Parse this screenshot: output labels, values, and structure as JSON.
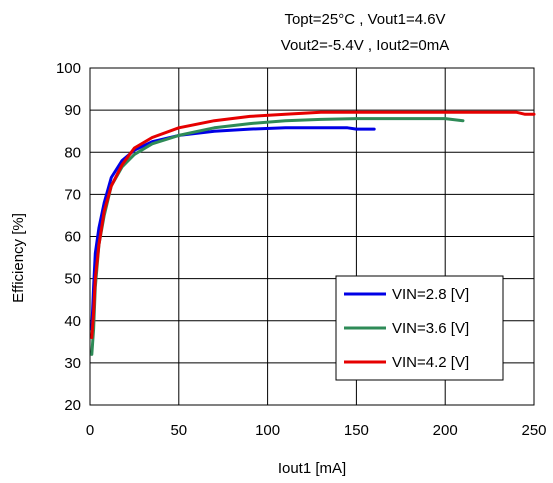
{
  "chart_data": {
    "type": "line",
    "conditions": {
      "line1": "Topt=25°C , Vout1=4.6V",
      "line2": "Vout2=-5.4V , Iout2=0mA"
    },
    "xlabel": "Iout1 [mA]",
    "ylabel": "Efficiency [%]",
    "xlim": [
      0,
      250
    ],
    "ylim": [
      20,
      100
    ],
    "xticks": [
      0,
      50,
      100,
      150,
      200,
      250
    ],
    "yticks": [
      20,
      30,
      40,
      50,
      60,
      70,
      80,
      90,
      100
    ],
    "grid": true,
    "legend_position": "bottom-right",
    "series": [
      {
        "name": "VIN=2.8 [V]",
        "color": "#0000e6",
        "x": [
          1,
          2,
          3,
          5,
          8,
          12,
          18,
          25,
          35,
          50,
          70,
          90,
          110,
          130,
          145,
          150,
          160
        ],
        "y": [
          38,
          48,
          56,
          62,
          68,
          74,
          78,
          80.5,
          82.5,
          84,
          85,
          85.5,
          85.8,
          85.8,
          85.8,
          85.5,
          85.5
        ]
      },
      {
        "name": "VIN=3.6 [V]",
        "color": "#2e8b57",
        "x": [
          1,
          2,
          3,
          5,
          8,
          12,
          18,
          25,
          35,
          50,
          70,
          90,
          110,
          130,
          150,
          170,
          200,
          210
        ],
        "y": [
          32,
          38,
          48,
          58,
          65,
          72,
          76.5,
          79.5,
          82,
          84,
          85.8,
          86.8,
          87.5,
          87.8,
          88,
          88,
          88,
          87.5
        ]
      },
      {
        "name": "VIN=4.2 [V]",
        "color": "#e60000",
        "x": [
          1,
          2,
          3,
          5,
          8,
          12,
          18,
          25,
          35,
          50,
          70,
          90,
          110,
          130,
          150,
          180,
          210,
          240,
          245,
          250
        ],
        "y": [
          36,
          42,
          50,
          58,
          66,
          72,
          77,
          81,
          83.5,
          85.8,
          87.5,
          88.5,
          89,
          89.5,
          89.5,
          89.5,
          89.5,
          89.5,
          89,
          89
        ]
      }
    ]
  }
}
